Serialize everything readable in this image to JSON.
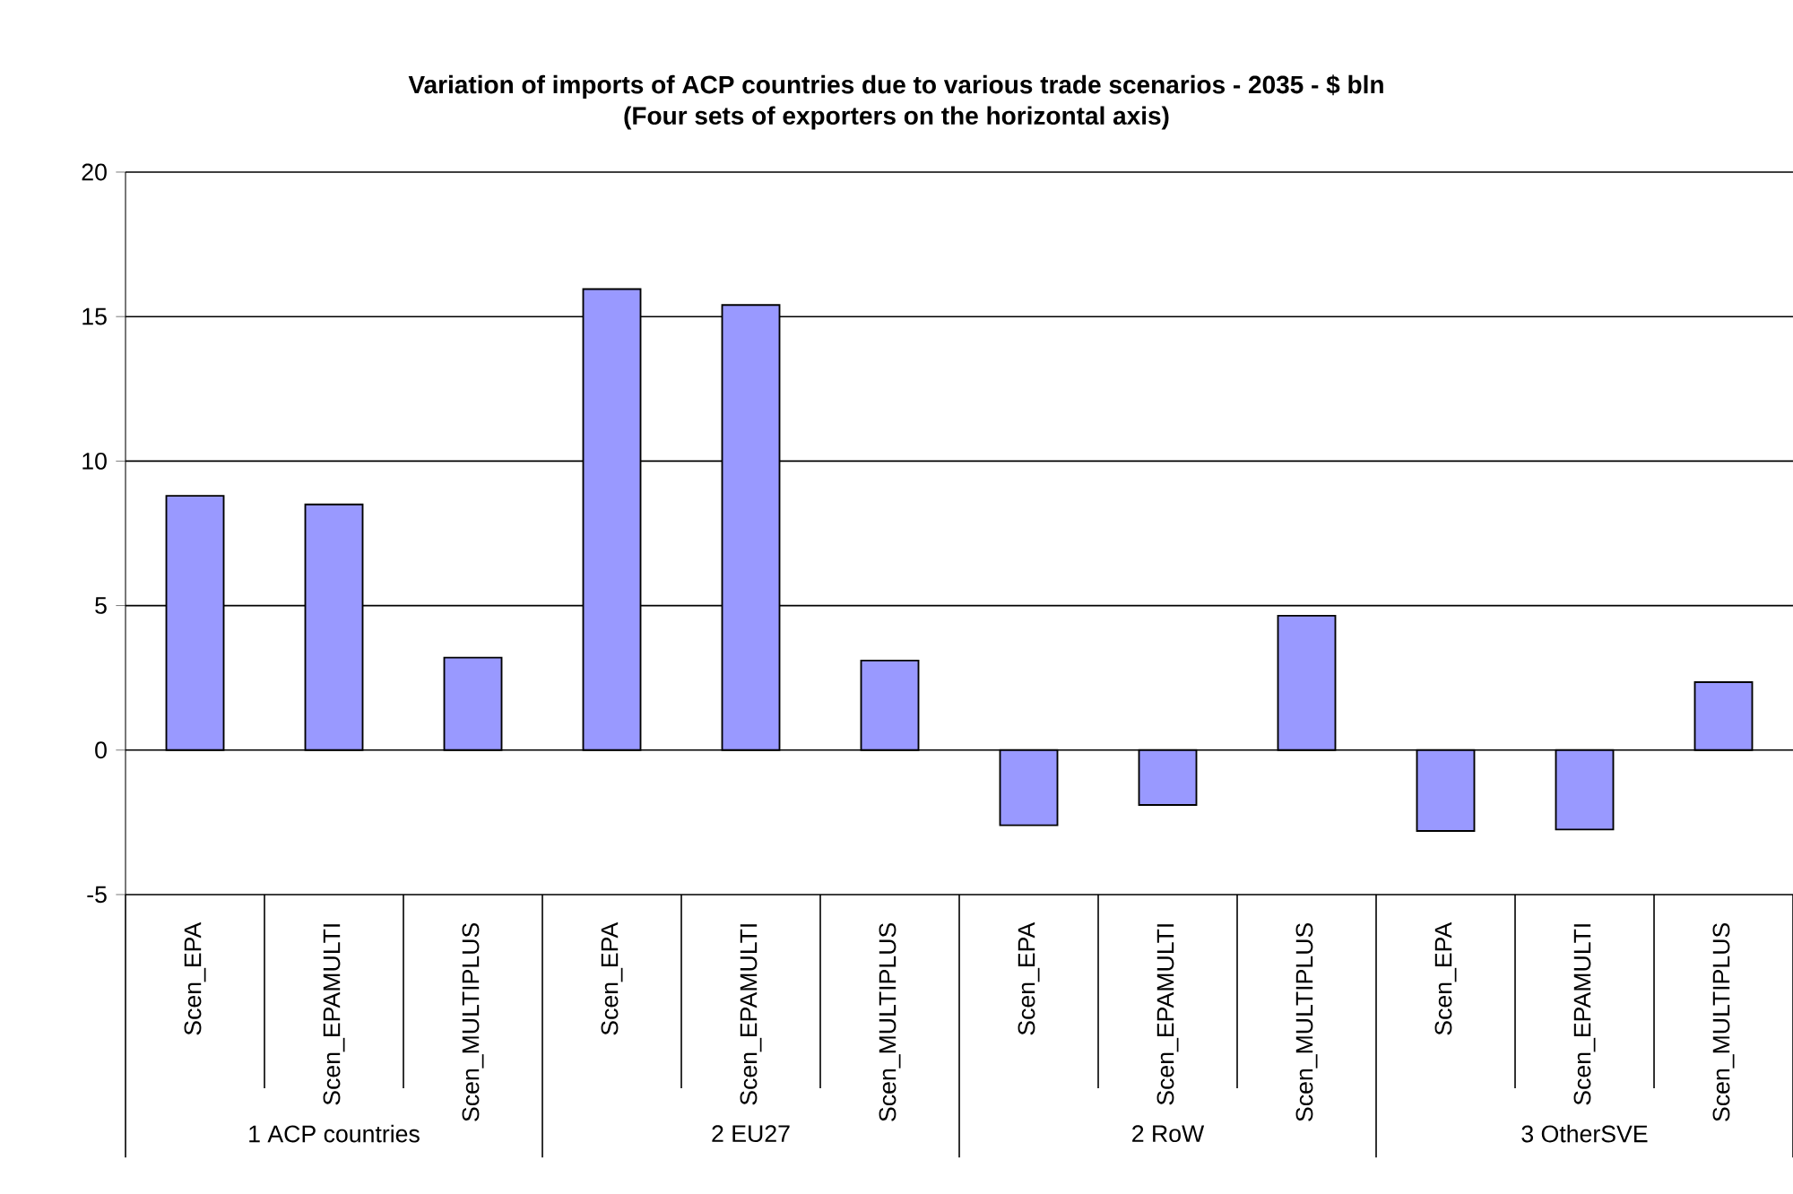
{
  "chart_data": {
    "type": "bar",
    "title": "Variation of imports of ACP countries due to various trade scenarios - 2035 - $ bln",
    "subtitle": "(Four sets of exporters on the horizontal axis)",
    "categories": [
      "Scen_EPA",
      "Scen_EPAMULTI",
      "Scen_MULTIPLUS",
      "Scen_EPA",
      "Scen_EPAMULTI",
      "Scen_MULTIPLUS",
      "Scen_EPA",
      "Scen_EPAMULTI",
      "Scen_MULTIPLUS",
      "Scen_EPA",
      "Scen_EPAMULTI",
      "Scen_MULTIPLUS"
    ],
    "values": [
      8.8,
      8.5,
      3.2,
      15.95,
      15.4,
      3.1,
      -2.6,
      -1.9,
      4.65,
      -2.8,
      -2.75,
      2.35
    ],
    "color": "#9999ff",
    "annotations": [
      "1 ACP countries",
      "2 EU27",
      "2 RoW",
      "3 OtherSVE"
    ],
    "ylim": [
      -5,
      20
    ],
    "yticks": [
      -5,
      0,
      5,
      10,
      15,
      20
    ],
    "grid": "y"
  }
}
